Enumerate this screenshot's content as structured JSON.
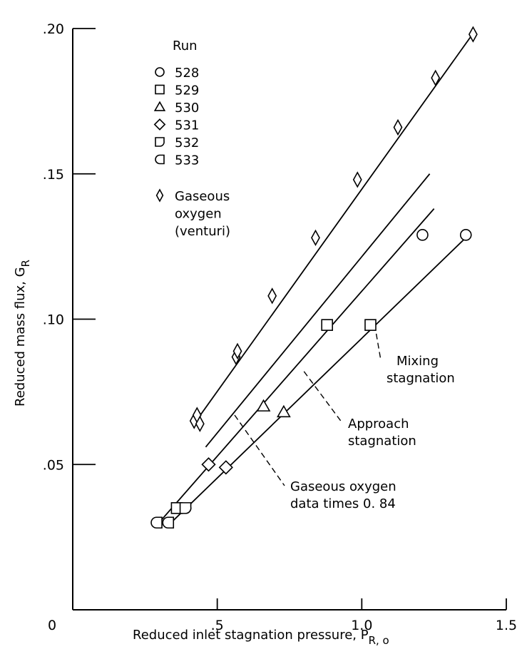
{
  "chart_data": {
    "type": "scatter",
    "xlabel": "Reduced inlet stagnation pressure, P",
    "xlabel_sub": "R, o",
    "ylabel": "Reduced mass flux, G",
    "ylabel_sub": "R",
    "xlim": [
      0,
      1.5
    ],
    "ylim": [
      0,
      0.2
    ],
    "x_ticks": [
      {
        "value": 0,
        "label": "0"
      },
      {
        "value": 0.5,
        "label": ".5"
      },
      {
        "value": 1.0,
        "label": "1.0"
      },
      {
        "value": 1.5,
        "label": "1.5"
      }
    ],
    "y_ticks": [
      {
        "value": 0.05,
        "label": ".05"
      },
      {
        "value": 0.1,
        "label": ".10"
      },
      {
        "value": 0.15,
        "label": ".15"
      },
      {
        "value": 0.2,
        "label": ".20"
      }
    ],
    "legend_title": "Run",
    "legend": [
      {
        "marker": "circle",
        "label": "528"
      },
      {
        "marker": "square",
        "label": "529"
      },
      {
        "marker": "triangle",
        "label": "530"
      },
      {
        "marker": "diamond",
        "label": "531"
      },
      {
        "marker": "flag-d",
        "label": "532"
      },
      {
        "marker": "flag-c",
        "label": "533"
      },
      {
        "marker": "thin-diamond",
        "label": "Gaseous oxygen (venturi)"
      }
    ],
    "legend_lines": [
      {
        "marker": "thin-diamond",
        "lines": [
          "Gaseous",
          "oxygen",
          "(venturi)"
        ]
      }
    ],
    "series": [
      {
        "name": "528",
        "marker": "circle",
        "points": [
          [
            1.21,
            0.129
          ],
          [
            1.36,
            0.129
          ]
        ]
      },
      {
        "name": "529",
        "marker": "square",
        "points": [
          [
            0.36,
            0.035
          ],
          [
            0.88,
            0.098
          ],
          [
            1.03,
            0.098
          ]
        ]
      },
      {
        "name": "530",
        "marker": "triangle",
        "points": [
          [
            0.66,
            0.07
          ],
          [
            0.73,
            0.068
          ]
        ]
      },
      {
        "name": "531",
        "marker": "diamond",
        "points": [
          [
            0.47,
            0.05
          ],
          [
            0.53,
            0.049
          ]
        ]
      },
      {
        "name": "532",
        "marker": "flag-d",
        "points": [
          [
            0.39,
            0.035
          ]
        ]
      },
      {
        "name": "533",
        "marker": "flag-c",
        "points": [
          [
            0.29,
            0.03
          ],
          [
            0.33,
            0.03
          ]
        ]
      },
      {
        "name": "Gaseous oxygen (venturi)",
        "marker": "thin-diamond",
        "points": [
          [
            0.42,
            0.065
          ],
          [
            0.43,
            0.067
          ],
          [
            0.44,
            0.064
          ],
          [
            0.565,
            0.087
          ],
          [
            0.57,
            0.089
          ],
          [
            0.69,
            0.108
          ],
          [
            0.84,
            0.128
          ],
          [
            0.985,
            0.148
          ],
          [
            1.125,
            0.166
          ],
          [
            1.255,
            0.183
          ],
          [
            1.385,
            0.198
          ]
        ]
      }
    ],
    "lines": [
      {
        "name": "Gaseous oxygen",
        "points": [
          [
            0.42,
            0.064
          ],
          [
            1.39,
            0.199
          ]
        ]
      },
      {
        "name": "Gaseous oxygen data times 0.84",
        "points": [
          [
            0.46,
            0.056
          ],
          [
            1.235,
            0.15
          ]
        ]
      },
      {
        "name": "Approach stagnation",
        "points": [
          [
            0.29,
            0.029
          ],
          [
            1.25,
            0.138
          ]
        ]
      },
      {
        "name": "Mixing stagnation",
        "points": [
          [
            0.33,
            0.029
          ],
          [
            1.37,
            0.129
          ]
        ]
      }
    ],
    "annotations": [
      {
        "lines": [
          "Mixing",
          "stagnation"
        ],
        "target": [
          1.05,
          0.095
        ]
      },
      {
        "lines": [
          "Approach",
          "stagnation"
        ],
        "target": [
          0.8,
          0.082
        ]
      },
      {
        "lines": [
          "Gaseous oxygen",
          "data times 0. 84"
        ],
        "target": [
          0.56,
          0.067
        ]
      }
    ],
    "grid": false
  }
}
